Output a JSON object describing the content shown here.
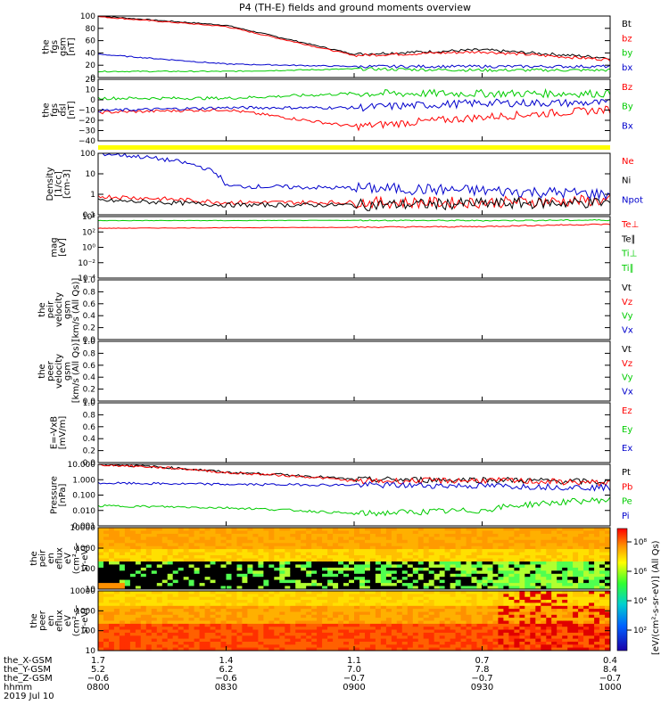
{
  "title": "P4 (TH-E) fields and ground moments overview",
  "colors": {
    "black": "#000000",
    "red": "#ff0000",
    "green": "#00cc00",
    "blue": "#0000cc",
    "yellow": "#ffff00"
  },
  "panels": [
    {
      "id": "fgs-gsm",
      "ylabel": [
        "the",
        "fgs",
        "gsm",
        "[nT]"
      ],
      "ticks": [
        "100",
        "80",
        "60",
        "40",
        "20",
        "0"
      ],
      "legend": [
        [
          "Bt",
          "black"
        ],
        [
          "bz",
          "red"
        ],
        [
          "by",
          "green"
        ],
        [
          "bx",
          "blue"
        ]
      ]
    },
    {
      "id": "fgs-dsl",
      "ylabel": [
        "the",
        "fgs",
        "dsl",
        "[nT]"
      ],
      "ticks": [
        "20",
        "10",
        "0",
        "−10",
        "−20",
        "−30",
        "−40"
      ],
      "legend": [
        [
          "Bz",
          "red"
        ],
        [
          "By",
          "green"
        ],
        [
          "Bx",
          "blue"
        ]
      ]
    },
    {
      "id": "density",
      "ylabel": [
        "Density",
        "[1/cc]",
        "[cm-3]"
      ],
      "ticks": [
        "100",
        "10",
        "1",
        "0.1"
      ],
      "legend": [
        [
          "Ne",
          "red"
        ],
        [
          "Ni",
          "black"
        ],
        [
          "Npot",
          "blue"
        ]
      ]
    },
    {
      "id": "temperature",
      "ylabel": [
        "mag",
        "[eV]"
      ],
      "ticks": [
        "10⁴",
        "10²",
        "10⁰",
        "10⁻²",
        "10⁻⁴"
      ],
      "legend": [
        [
          "Te⊥",
          "red"
        ],
        [
          "Te∥",
          "black"
        ],
        [
          "Ti⊥",
          "green"
        ],
        [
          "Ti∥",
          "green"
        ]
      ]
    },
    {
      "id": "peir-velocity",
      "ylabel": [
        "the",
        "peir",
        "velocity",
        "gsm",
        "[km/s (All Qs)]"
      ],
      "ticks": [
        "1.0",
        "0.8",
        "0.6",
        "0.4",
        "0.2",
        "0.0"
      ],
      "legend": [
        [
          "Vt",
          "black"
        ],
        [
          "Vz",
          "red"
        ],
        [
          "Vy",
          "green"
        ],
        [
          "Vx",
          "blue"
        ]
      ]
    },
    {
      "id": "peer-velocity",
      "ylabel": [
        "the",
        "peer",
        "velocity",
        "gsm",
        "[km/s (All Qs)]"
      ],
      "ticks": [
        "1.0",
        "0.8",
        "0.6",
        "0.4",
        "0.2",
        "0.0"
      ],
      "legend": [
        [
          "Vt",
          "black"
        ],
        [
          "Vz",
          "red"
        ],
        [
          "Vy",
          "green"
        ],
        [
          "Vx",
          "blue"
        ]
      ]
    },
    {
      "id": "e-field",
      "ylabel": [
        "E=-VxB",
        "[mV/m]"
      ],
      "ticks": [
        "1.0",
        "0.8",
        "0.6",
        "0.4",
        "0.2",
        "0.0"
      ],
      "legend": [
        [
          "Ez",
          "red"
        ],
        [
          "Ey",
          "green"
        ],
        [
          "Ex",
          "blue"
        ]
      ]
    },
    {
      "id": "pressure",
      "ylabel": [
        "Pressure",
        "[nPa]"
      ],
      "ticks": [
        "10.000",
        "1.000",
        "0.100",
        "0.010",
        "0.001"
      ],
      "legend": [
        [
          "Pt",
          "black"
        ],
        [
          "Pb",
          "red"
        ],
        [
          "Pe",
          "green"
        ],
        [
          "Pi",
          "blue"
        ]
      ]
    },
    {
      "id": "peir-eflux",
      "ylabel": [
        "the",
        "peir",
        "en",
        "eflux",
        "eV",
        "(cm²-s-",
        "sr-eV)"
      ],
      "ticks": [
        "10000",
        "1000",
        "100",
        "10"
      ]
    },
    {
      "id": "peer-eflux",
      "ylabel": [
        "the",
        "peer",
        "en",
        "eflux",
        "eV",
        "(cm²-s-",
        "sr-eV)"
      ],
      "ticks": [
        "10000",
        "1000",
        "100",
        "10"
      ]
    }
  ],
  "colorbar": {
    "label": "[eV/(cm²-s-sr-eV)] (All Qs)",
    "ticks": [
      "10⁸",
      "10⁶",
      "10⁴",
      "10²"
    ]
  },
  "xaxis": {
    "row_labels": [
      "the_X-GSM",
      "the_Y-GSM",
      "the_Z-GSM",
      "hhmm",
      "2019 Jul 10"
    ],
    "columns": [
      [
        "1.7",
        "5.2",
        "−0.6",
        "0800"
      ],
      [
        "1.4",
        "6.2",
        "−0.6",
        "0830"
      ],
      [
        "1.1",
        "7.0",
        "−0.7",
        "0900"
      ],
      [
        "0.7",
        "7.8",
        "−0.7",
        "0930"
      ],
      [
        "0.4",
        "8.4",
        "−0.7",
        "1000"
      ]
    ]
  },
  "chart_data": [
    {
      "type": "line",
      "title": "P4 (TH-E) fields and ground moments overview",
      "ylabel": "the fgs gsm [nT]",
      "x": [
        "0800",
        "0830",
        "0900",
        "0930",
        "1000"
      ],
      "ylim": [
        0,
        100
      ],
      "series": [
        {
          "name": "Bt",
          "values": [
            100,
            85,
            38,
            45,
            32
          ]
        },
        {
          "name": "bz",
          "values": [
            99,
            83,
            36,
            42,
            29
          ]
        },
        {
          "name": "by",
          "values": [
            10,
            10,
            14,
            12,
            12
          ]
        },
        {
          "name": "bx",
          "values": [
            38,
            22,
            18,
            18,
            18
          ]
        }
      ]
    },
    {
      "type": "line",
      "ylabel": "the fgs dsl [nT]",
      "x": [
        "0800",
        "0830",
        "0900",
        "0930",
        "1000"
      ],
      "ylim": [
        -45,
        20
      ],
      "series": [
        {
          "name": "Bz",
          "values": [
            -15,
            -12,
            -30,
            -20,
            -12
          ]
        },
        {
          "name": "By",
          "values": [
            0,
            0,
            5,
            5,
            5
          ]
        },
        {
          "name": "Bx",
          "values": [
            -13,
            -10,
            -10,
            -5,
            -5
          ]
        }
      ]
    },
    {
      "type": "line",
      "ylabel": "Density [1/cc]",
      "x": [
        "0800",
        "0830",
        "0900",
        "0930",
        "1000"
      ],
      "ylim": [
        0.1,
        100
      ],
      "yscale": "log",
      "series": [
        {
          "name": "Ne",
          "values": [
            0.8,
            0.4,
            0.4,
            0.4,
            0.5
          ]
        },
        {
          "name": "Ni",
          "values": [
            0.5,
            0.3,
            0.3,
            0.35,
            0.4
          ]
        },
        {
          "name": "Npot",
          "values": [
            100,
            2.5,
            2.0,
            1.5,
            1.0
          ]
        }
      ]
    },
    {
      "type": "line",
      "ylabel": "mag [eV]",
      "x": [
        "0800",
        "0830",
        "0900",
        "0930",
        "1000"
      ],
      "ylim": [
        0.0001,
        10000
      ],
      "yscale": "log",
      "series": [
        {
          "name": "Te⊥",
          "values": [
            300,
            350,
            400,
            500,
            1000
          ]
        },
        {
          "name": "Ti⊥",
          "values": [
            3000,
            3000,
            3200,
            3000,
            3500
          ]
        }
      ]
    },
    {
      "type": "line",
      "ylabel": "the peir velocity gsm",
      "ylim": [
        0,
        1
      ],
      "series": []
    },
    {
      "type": "line",
      "ylabel": "the peer velocity gsm",
      "ylim": [
        0,
        1
      ],
      "series": []
    },
    {
      "type": "line",
      "ylabel": "E=-VxB [mV/m]",
      "ylim": [
        0,
        1
      ],
      "series": []
    },
    {
      "type": "line",
      "ylabel": "Pressure [nPa]",
      "x": [
        "0800",
        "0830",
        "0900",
        "0930",
        "1000"
      ],
      "ylim": [
        0.001,
        10
      ],
      "yscale": "log",
      "series": [
        {
          "name": "Pt",
          "values": [
            10,
            3,
            1.0,
            1.0,
            0.7
          ]
        },
        {
          "name": "Pb",
          "values": [
            9.5,
            2.8,
            0.8,
            0.9,
            0.6
          ]
        },
        {
          "name": "Pe",
          "values": [
            0.02,
            0.015,
            0.006,
            0.01,
            0.05
          ]
        },
        {
          "name": "Pi",
          "values": [
            0.6,
            0.5,
            0.45,
            0.4,
            0.3
          ]
        }
      ]
    },
    {
      "type": "heatmap",
      "ylabel": "the peir en eflux",
      "yscale": "log",
      "ylim": [
        7,
        20000
      ]
    },
    {
      "type": "heatmap",
      "ylabel": "the peer en eflux",
      "yscale": "log",
      "ylim": [
        7,
        20000
      ]
    }
  ]
}
